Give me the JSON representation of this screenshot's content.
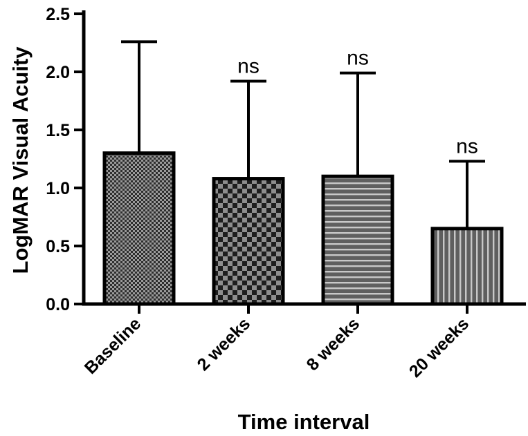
{
  "chart_data": {
    "type": "bar",
    "categories": [
      "Baseline",
      "2 weeks",
      "8 weeks",
      "20 weeks"
    ],
    "values": [
      1.3,
      1.08,
      1.1,
      0.65
    ],
    "error_upper": [
      2.26,
      1.92,
      1.99,
      1.23
    ],
    "significance": [
      "",
      "ns",
      "ns",
      "ns"
    ],
    "patterns": [
      "fine-checker",
      "coarse-checker",
      "horizontal-stripes",
      "vertical-stripes"
    ],
    "xlabel": "Time interval",
    "ylabel": "LogMAR Visual Acuity",
    "ylim": [
      0,
      2.5
    ],
    "yticks": [
      "0.0",
      "0.5",
      "1.0",
      "1.5",
      "2.0",
      "2.5"
    ],
    "grid": false,
    "legend": "none",
    "colors": {
      "ink": "#000000",
      "bar_fill": "#5a5a5a",
      "bar_light": "#8a8a8a",
      "background": "#ffffff"
    }
  }
}
